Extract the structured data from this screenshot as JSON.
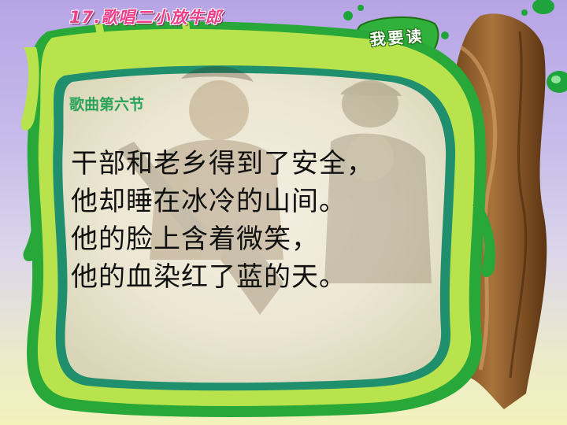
{
  "slide": {
    "title": "17.歌唱二小放牛郎",
    "badge": "我要读",
    "section_label": "歌曲第六节",
    "poem_lines": [
      "干部和老乡得到了安全，",
      "他却睡在冰冷的山间。",
      "他的脸上含着微笑，",
      "他的血染红了蓝的天。"
    ]
  },
  "colors": {
    "title": "#ee3d8a",
    "section_label": "#2aa35a",
    "frame_green": "#27a83b",
    "frame_lime": "#b8e24a",
    "tree_brown": "#8a5a2a"
  }
}
